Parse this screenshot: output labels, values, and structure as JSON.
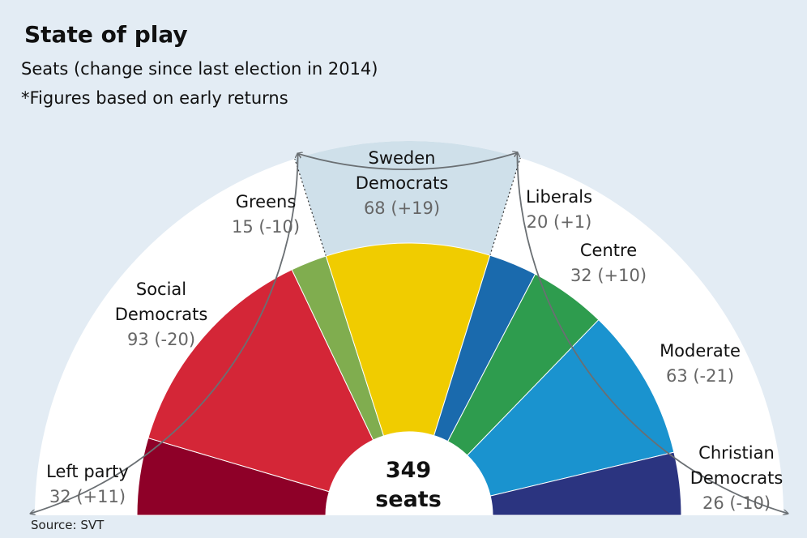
{
  "header": {
    "title": "State of play",
    "subtitle": "Seats (change since last election in 2014)",
    "note": "*Figures based on early returns"
  },
  "source": "Source: SVT",
  "colors": {
    "background": "#e3ecf4",
    "highlight_band": "#cfe0ea",
    "outer_ring": "#ffffff",
    "arrow": "#6a6f73"
  },
  "chart_data": {
    "type": "pie",
    "shape": "semicircle",
    "total_value": "349",
    "total_label": "seats",
    "slices": [
      {
        "name_lines": [
          "Left party"
        ],
        "value": 32,
        "change": "+11",
        "label_text": "32 (+11)",
        "color": "#8e0028"
      },
      {
        "name_lines": [
          "Social",
          "Democrats"
        ],
        "value": 93,
        "change": "-20",
        "label_text": "93 (-20)",
        "color": "#d42637"
      },
      {
        "name_lines": [
          "Greens"
        ],
        "value": 15,
        "change": "-10",
        "label_text": "15 (-10)",
        "color": "#80ad4f"
      },
      {
        "name_lines": [
          "Sweden",
          "Democrats"
        ],
        "value": 68,
        "change": "+19",
        "label_text": "68 (+19)",
        "color": "#f0cc00"
      },
      {
        "name_lines": [
          "Liberals"
        ],
        "value": 20,
        "change": "+1",
        "label_text": "20 (+1)",
        "color": "#1a6aad"
      },
      {
        "name_lines": [
          "Centre"
        ],
        "value": 32,
        "change": "+10",
        "label_text": "32 (+10)",
        "color": "#2e9c4e"
      },
      {
        "name_lines": [
          "Moderate"
        ],
        "value": 63,
        "change": "-21",
        "label_text": "63 (-21)",
        "color": "#1a93cf"
      },
      {
        "name_lines": [
          "Christian",
          "Democrats"
        ],
        "value": 26,
        "change": "-10",
        "label_text": "26 (-10)",
        "color": "#2b3480"
      }
    ]
  }
}
